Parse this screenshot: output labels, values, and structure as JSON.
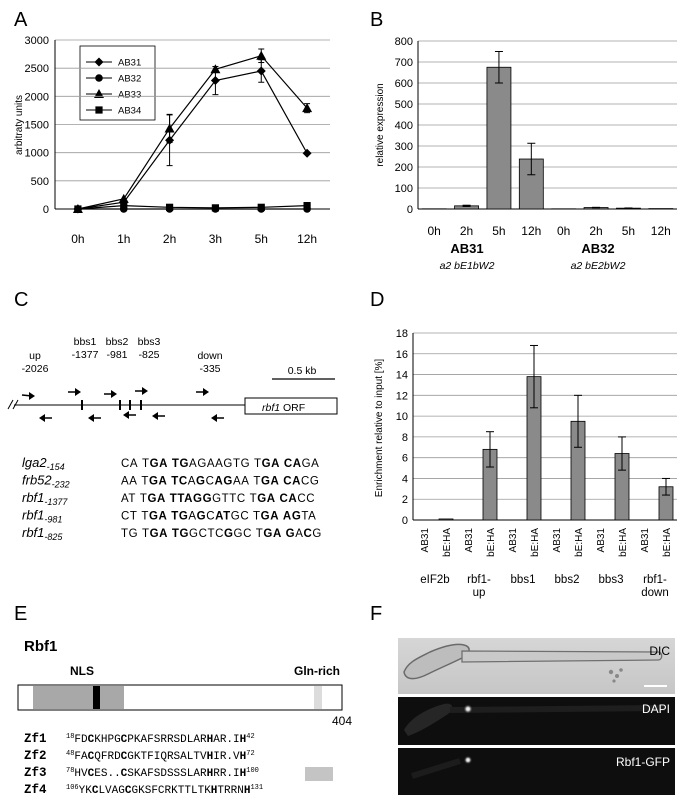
{
  "panels": {
    "A": "A",
    "B": "B",
    "C": "C",
    "D": "D",
    "E": "E",
    "F": "F"
  },
  "chart_data": [
    {
      "type": "line",
      "panel": "A",
      "ylabel": "arbitraty units",
      "xlabel": "",
      "categories": [
        "0h",
        "1h",
        "2h",
        "3h",
        "5h",
        "12h"
      ],
      "ylim": [
        0,
        3000
      ],
      "yticks": [
        0,
        500,
        1000,
        1500,
        2000,
        2500,
        3000
      ],
      "grid": true,
      "legend_position": "top-left",
      "series": [
        {
          "name": "AB31",
          "marker": "diamond",
          "values": [
            0,
            120,
            1220,
            2280,
            2450,
            990
          ],
          "errors": [
            0,
            0,
            450,
            250,
            200,
            0
          ]
        },
        {
          "name": "AB32",
          "marker": "circle",
          "values": [
            0,
            0,
            0,
            0,
            0,
            0
          ],
          "errors": [
            0,
            0,
            0,
            0,
            0,
            0
          ]
        },
        {
          "name": "AB33",
          "marker": "triangle",
          "values": [
            0,
            180,
            1430,
            2480,
            2720,
            1790
          ],
          "errors": [
            0,
            0,
            250,
            0,
            120,
            80
          ]
        },
        {
          "name": "AB34",
          "marker": "square",
          "values": [
            0,
            60,
            30,
            20,
            30,
            60
          ],
          "errors": [
            0,
            0,
            0,
            0,
            0,
            0
          ]
        }
      ]
    },
    {
      "type": "bar",
      "panel": "B",
      "ylabel": "relative expression",
      "categories": [
        "0h",
        "2h",
        "5h",
        "12h",
        "0h",
        "2h",
        "5h",
        "12h"
      ],
      "values": [
        1,
        15,
        675,
        238,
        1,
        7,
        4,
        2
      ],
      "errors": [
        0,
        3,
        75,
        75,
        0,
        1,
        1,
        0
      ],
      "ylim": [
        0,
        800
      ],
      "yticks": [
        0,
        100,
        200,
        300,
        400,
        500,
        600,
        700,
        800
      ],
      "grid": true,
      "groups": [
        {
          "name": "AB31",
          "genotype": "a2 bE1bW2"
        },
        {
          "name": "AB32",
          "genotype": "a2 bE2bW2"
        }
      ]
    },
    {
      "type": "bar",
      "panel": "D",
      "ylabel": "Enrichment relative to input [%]",
      "categories": [
        "AB31",
        "bE:HA",
        "AB31",
        "bE:HA",
        "AB31",
        "bE:HA",
        "AB31",
        "bE:HA",
        "AB31",
        "bE:HA",
        "AB31",
        "bE:HA"
      ],
      "values": [
        0,
        0.1,
        0,
        6.8,
        0,
        13.8,
        0,
        9.5,
        0,
        6.4,
        0,
        3.2
      ],
      "errors": [
        0,
        0,
        0,
        1.7,
        0,
        3.0,
        0,
        2.5,
        0,
        1.6,
        0,
        0.8
      ],
      "ylim": [
        0,
        18
      ],
      "yticks": [
        0,
        2,
        4,
        6,
        8,
        10,
        12,
        14,
        16,
        18
      ],
      "yticklabels": [
        "0",
        "2",
        "4",
        "6",
        "8",
        "10",
        "12",
        "14",
        "16",
        "18"
      ],
      "grid": true,
      "groups": [
        "eIF2b",
        "rbf1-up",
        "bbs1",
        "bbs2",
        "bbs3",
        "rbf1-down"
      ]
    }
  ],
  "panelC": {
    "scale_bar": "0.5 kb",
    "orf_label_italic": "rbf1",
    "orf_label": " ORF",
    "primers": [
      {
        "name": "up",
        "pos": "-2026"
      },
      {
        "name": "bbs1",
        "pos": "-1377"
      },
      {
        "name": "bbs2",
        "pos": "-981"
      },
      {
        "name": "bbs3",
        "pos": "-825"
      },
      {
        "name": "down",
        "pos": "-335"
      }
    ],
    "alignment": [
      {
        "gene": "lga2",
        "sub": "-154",
        "seq": "CA TGA TGAGAAGTG TGA CAGA"
      },
      {
        "gene": "frb52",
        "sub": "-232",
        "seq": "AA TGA TCAGCAGAA TGA CACG"
      },
      {
        "gene": "rbf1",
        "sub": "-1377",
        "seq": "AT TGA TTAGGGTTC TGA CACC"
      },
      {
        "gene": "rbf1",
        "sub": "-981",
        "seq": "CT TGA TGAGCATGC TGA AGTA"
      },
      {
        "gene": "rbf1",
        "sub": "-825",
        "seq": "TG TGA TGGCTCGGC TGA GACG"
      }
    ]
  },
  "panelE": {
    "protein": "Rbf1",
    "nls": "NLS",
    "gln": "Gln-rich",
    "length": "404",
    "zincfingers": [
      {
        "name": "Zf1",
        "start": "18",
        "seq": "FDCKHPGCPKAFSRRSDLARHAR.IH",
        "end": "42"
      },
      {
        "name": "Zf2",
        "start": "48",
        "seq": "FACQFRDCGKTFIQRSALTVHIR.VH",
        "end": "72"
      },
      {
        "name": "Zf3",
        "start": "78",
        "seq": "HVCES..CSKAFSDSSSLARHRR.IH",
        "end": "100"
      },
      {
        "name": "Zf4",
        "start": "106",
        "seq": "YKCLVAGCGKSFCRKTTLTKHTRRNH",
        "end": "131"
      }
    ]
  },
  "panelF": {
    "images": [
      "DIC",
      "DAPI",
      "Rbf1-GFP"
    ]
  }
}
